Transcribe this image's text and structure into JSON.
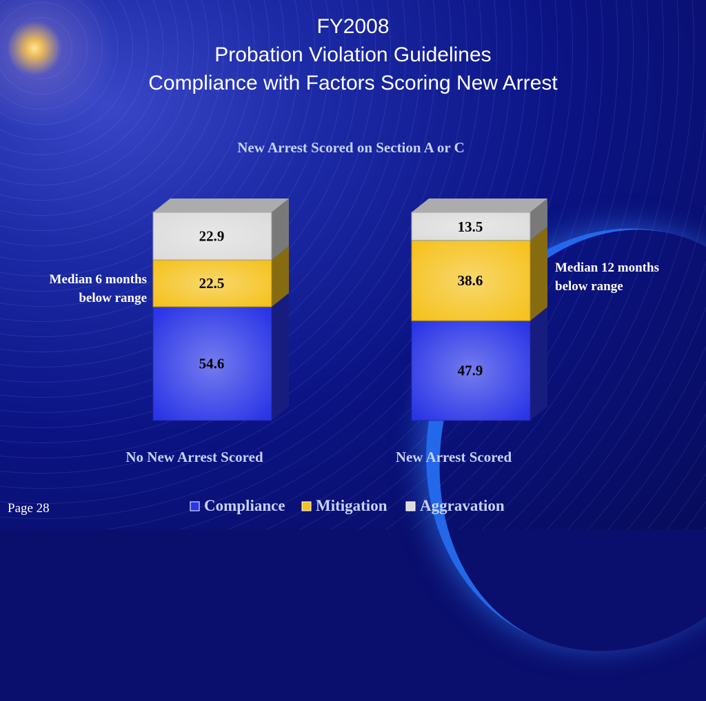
{
  "slide": {
    "title_lines": [
      "FY2008",
      "Probation Violation Guidelines",
      "Compliance with Factors Scoring New Arrest"
    ],
    "page_label": "Page 28"
  },
  "chart_data": {
    "type": "bar",
    "stacked": true,
    "title": "New Arrest Scored on Section A or C",
    "categories": [
      "No New Arrest Scored",
      "New Arrest Scored"
    ],
    "series": [
      {
        "name": "Compliance",
        "values": [
          54.6,
          47.9
        ],
        "color": "#2a35e6"
      },
      {
        "name": "Mitigation",
        "values": [
          22.5,
          38.6
        ],
        "color": "#f5c21e"
      },
      {
        "name": "Aggravation",
        "values": [
          22.9,
          13.5
        ],
        "color": "#dcdcdc"
      }
    ],
    "annotations": [
      "Median 6 months\nbelow range",
      "Median 12 months\nbelow range"
    ],
    "legend_position": "bottom",
    "grid": false
  }
}
